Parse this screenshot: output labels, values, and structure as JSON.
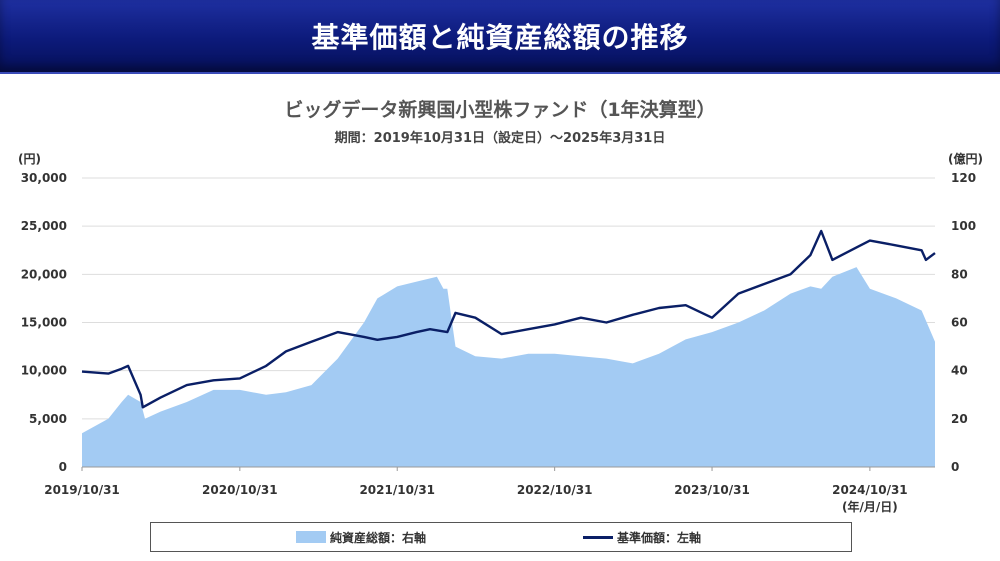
{
  "header": {
    "title": "基準価額と純資産総額の推移"
  },
  "chart_data": {
    "type": "line+area",
    "title": "ビッグデータ新興国小型株ファンド（1年決算型）",
    "subtitle": "期間：2019年10月31日（設定日）～2025年3月31日",
    "y_left_unit": "(円)",
    "y_right_unit": "(億円)",
    "x_axis_note": "(年/月/日)",
    "y_left": {
      "min": 0,
      "max": 30000,
      "ticks": [
        "30,000",
        "25,000",
        "20,000",
        "15,000",
        "10,000",
        "5,000",
        "0"
      ]
    },
    "y_right": {
      "min": 0,
      "max": 120,
      "ticks": [
        "120",
        "100",
        "80",
        "60",
        "40",
        "20",
        "0"
      ]
    },
    "x_ticks": [
      "2019/10/31",
      "2020/10/31",
      "2021/10/31",
      "2022/10/31",
      "2023/10/31",
      "2024/10/31"
    ],
    "x_range": [
      "2019/10/31",
      "2025/03/31"
    ],
    "grid": true,
    "series": [
      {
        "name": "純資産総額：右軸",
        "type": "area",
        "axis": "right",
        "color": "#a3cbf3",
        "dates": [
          "2019/10/31",
          "2019/12/31",
          "2020/01/31",
          "2020/02/15",
          "2020/03/15",
          "2020/03/25",
          "2020/04/30",
          "2020/06/30",
          "2020/08/31",
          "2020/10/31",
          "2020/12/31",
          "2021/02/15",
          "2021/04/15",
          "2021/06/15",
          "2021/08/15",
          "2021/09/15",
          "2021/10/31",
          "2021/12/15",
          "2022/01/31",
          "2022/02/15",
          "2022/02/24",
          "2022/03/15",
          "2022/04/30",
          "2022/06/30",
          "2022/08/31",
          "2022/10/31",
          "2022/12/31",
          "2023/02/28",
          "2023/04/30",
          "2023/06/30",
          "2023/08/31",
          "2023/10/31",
          "2023/12/31",
          "2024/02/29",
          "2024/04/30",
          "2024/06/15",
          "2024/07/10",
          "2024/08/05",
          "2024/09/30",
          "2024/10/31",
          "2024/12/31",
          "2025/02/28",
          "2025/03/31"
        ],
        "values": [
          14,
          20,
          27,
          30,
          27,
          20,
          23,
          27,
          32,
          32,
          30,
          31,
          34,
          45,
          60,
          70,
          75,
          77,
          79,
          74,
          74,
          50,
          46,
          45,
          47,
          47,
          46,
          45,
          43,
          47,
          53,
          56,
          60,
          65,
          72,
          75,
          74,
          79,
          83,
          74,
          70,
          65,
          52
        ]
      },
      {
        "name": "基準価額：左軸",
        "type": "line",
        "axis": "left",
        "color": "#0a1f66",
        "dates": [
          "2019/10/31",
          "2019/12/31",
          "2020/01/31",
          "2020/02/15",
          "2020/03/15",
          "2020/03/20",
          "2020/04/30",
          "2020/06/30",
          "2020/08/31",
          "2020/10/31",
          "2020/12/31",
          "2021/02/15",
          "2021/04/15",
          "2021/06/15",
          "2021/08/15",
          "2021/09/15",
          "2021/10/31",
          "2021/12/15",
          "2022/01/15",
          "2022/02/24",
          "2022/03/15",
          "2022/04/30",
          "2022/06/30",
          "2022/08/31",
          "2022/10/31",
          "2022/12/31",
          "2023/02/28",
          "2023/04/30",
          "2023/06/30",
          "2023/08/31",
          "2023/10/31",
          "2023/12/31",
          "2024/02/29",
          "2024/04/30",
          "2024/06/15",
          "2024/07/10",
          "2024/08/05",
          "2024/09/30",
          "2024/10/31",
          "2024/12/31",
          "2025/02/28",
          "2025/03/10",
          "2025/03/31"
        ],
        "values": [
          9900,
          9700,
          10200,
          10500,
          7500,
          6200,
          7200,
          8500,
          9000,
          9200,
          10500,
          12000,
          13000,
          14000,
          13500,
          13200,
          13500,
          14000,
          14300,
          14000,
          16000,
          15500,
          13800,
          14300,
          14800,
          15500,
          15000,
          15800,
          16500,
          16800,
          15500,
          18000,
          19000,
          20000,
          22000,
          24500,
          21500,
          22800,
          23500,
          23000,
          22500,
          21500,
          22200
        ]
      }
    ]
  }
}
